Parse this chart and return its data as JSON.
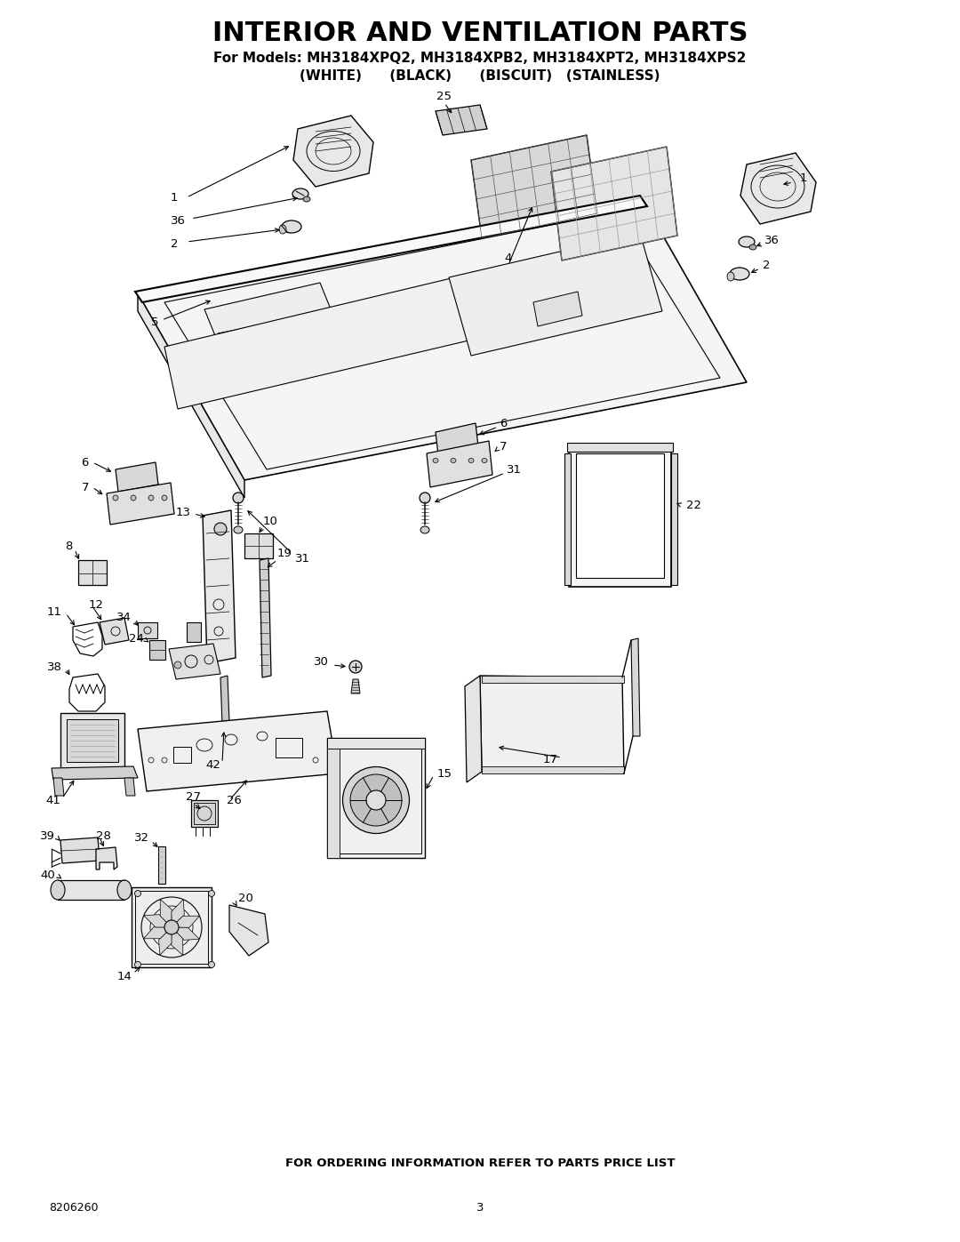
{
  "title": "INTERIOR AND VENTILATION PARTS",
  "subtitle": "For Models: MH3184XPQ2, MH3184XPB2, MH3184XPT2, MH3184XPS2",
  "subtitle2": "(WHITE)      (BLACK)      (BISCUIT)   (STAINLESS)",
  "footer_text": "FOR ORDERING INFORMATION REFER TO PARTS PRICE LIST",
  "part_number": "8206260",
  "page_number": "3",
  "bg_color": "#ffffff",
  "title_color": "#000000"
}
